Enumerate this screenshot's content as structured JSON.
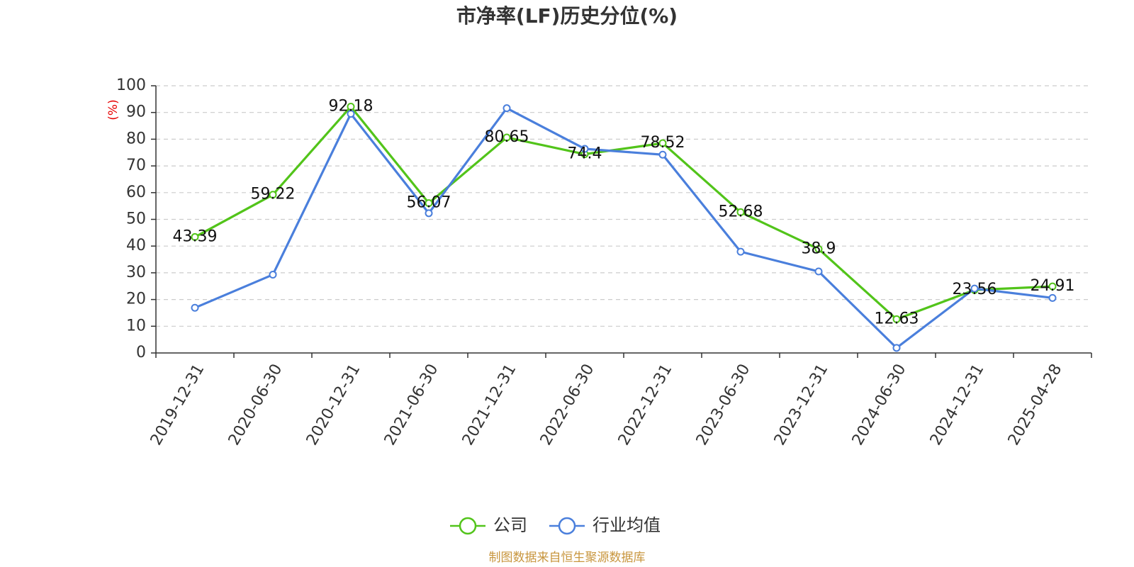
{
  "chart_data": {
    "type": "line",
    "title": "市净率(LF)历史分位(%)",
    "ylabel": "(%)",
    "xlabel": "",
    "ylim": [
      0,
      100
    ],
    "yticks": [
      0,
      10,
      20,
      30,
      40,
      50,
      60,
      70,
      80,
      90,
      100
    ],
    "categories": [
      "2019-12-31",
      "2020-06-30",
      "2020-12-31",
      "2021-06-30",
      "2021-12-31",
      "2022-06-30",
      "2022-12-31",
      "2023-06-30",
      "2023-12-31",
      "2024-06-30",
      "2024-12-31",
      "2025-04-28"
    ],
    "grid": true,
    "legend_position": "bottom-center",
    "series": [
      {
        "name": "公司",
        "color": "#52c41a",
        "values": [
          43.39,
          59.22,
          92.18,
          56.07,
          80.65,
          74.4,
          78.52,
          52.68,
          38.9,
          12.63,
          23.56,
          24.91
        ],
        "data_labels": [
          "43.39",
          "59.22",
          "92.18",
          "56.07",
          "80.65",
          "74.4",
          "78.52",
          "52.68",
          "38.9",
          "12.63",
          "23.56",
          "24.91"
        ]
      },
      {
        "name": "行业均值",
        "color": "#4a7fdc",
        "values": [
          16.9,
          29.3,
          89.5,
          52.3,
          91.6,
          76.4,
          74.2,
          37.9,
          30.5,
          1.9,
          24.1,
          20.6
        ]
      }
    ]
  },
  "source": "制图数据来自恒生聚源数据库",
  "colors": {
    "source_text": "#c8963e",
    "unit_text": "#e60000",
    "grid": "#cccccc",
    "axis": "#333333"
  }
}
